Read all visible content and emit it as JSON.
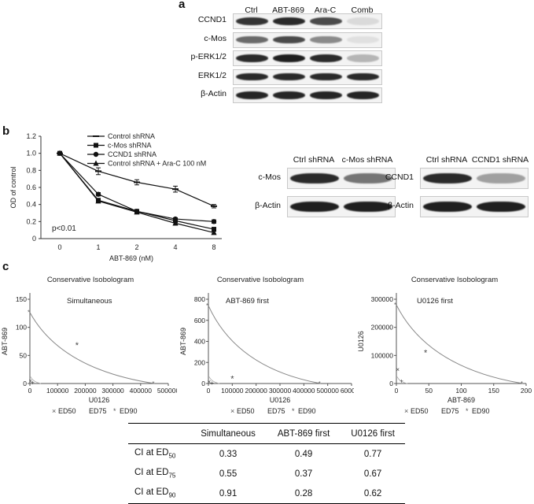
{
  "panel_a": {
    "letter": "a",
    "lanes": [
      "Ctrl",
      "ABT-869",
      "Ara-C",
      "Comb"
    ],
    "rows": [
      {
        "label": "CCND1",
        "intensity": [
          0.85,
          0.9,
          0.75,
          0.08
        ]
      },
      {
        "label": "c-Mos",
        "intensity": [
          0.6,
          0.75,
          0.45,
          0.05
        ]
      },
      {
        "label": "p-ERK1/2",
        "intensity": [
          0.9,
          0.95,
          0.9,
          0.25
        ]
      },
      {
        "label": "ERK1/2",
        "intensity": [
          0.9,
          0.9,
          0.9,
          0.9
        ]
      },
      {
        "label": "β-Actin",
        "intensity": [
          0.92,
          0.92,
          0.92,
          0.92
        ]
      }
    ]
  },
  "panel_b": {
    "letter": "b",
    "blots": [
      {
        "lanes": [
          "Ctrl shRNA",
          "c-Mos shRNA"
        ],
        "rows": [
          {
            "label": "c-Mos",
            "intensity": [
              0.9,
              0.55
            ]
          },
          {
            "label": "β-Actin",
            "intensity": [
              0.95,
              0.95
            ]
          }
        ]
      },
      {
        "lanes": [
          "Ctrl shRNA",
          "CCND1 shRNA"
        ],
        "rows": [
          {
            "label": "CCND1",
            "intensity": [
              0.9,
              0.35
            ]
          },
          {
            "label": "β-Actin",
            "intensity": [
              0.95,
              0.95
            ]
          }
        ]
      }
    ]
  },
  "panel_c": {
    "letter": "c"
  },
  "chart_data": [
    {
      "type": "line",
      "xlabel": "ABT-869 (nM)",
      "ylabel": "OD of control",
      "categories": [
        "0",
        "1",
        "2",
        "4",
        "8"
      ],
      "ylim": [
        0,
        1.2
      ],
      "yticks": [
        "0",
        "0.2",
        "0.4",
        "0.6",
        "0.8",
        "1.0",
        "1.2"
      ],
      "annotation": "p<0.01",
      "legend_position": "top",
      "series": [
        {
          "name": "Control shRNA",
          "marker": "dash",
          "values": [
            1.0,
            0.79,
            0.66,
            0.58,
            0.38
          ],
          "errors": [
            0,
            0.04,
            0.03,
            0.035,
            0.02
          ]
        },
        {
          "name": "c-Mos shRNA",
          "marker": "square",
          "values": [
            1.0,
            0.45,
            0.32,
            0.21,
            0.11
          ],
          "errors": [
            0,
            0.015,
            0.015,
            0.02,
            0.02
          ]
        },
        {
          "name": "CCND1 shRNA",
          "marker": "circle",
          "values": [
            1.0,
            0.52,
            0.32,
            0.23,
            0.2
          ],
          "errors": [
            0,
            0.02,
            0.015,
            0.015,
            0.02
          ]
        },
        {
          "name": "Control shRNA + Ara-C 100 nM",
          "marker": "triangle",
          "values": [
            1.0,
            0.44,
            0.31,
            0.18,
            0.07
          ],
          "errors": [
            0,
            0.015,
            0.015,
            0.015,
            0.015
          ]
        }
      ]
    },
    {
      "type": "scatter",
      "title": "Conservative Isobologram",
      "annotation": "Simultaneous",
      "xlabel": "U0126",
      "ylabel": "ABT-869",
      "xlim": [
        0,
        500000
      ],
      "ylim": [
        0,
        160
      ],
      "xticks": [
        "0",
        "100000",
        "200000",
        "300000",
        "400000",
        "500000"
      ],
      "yticks": [
        "0",
        "50",
        "100",
        "150"
      ],
      "legend": [
        "ED50",
        "ED75",
        "ED90"
      ],
      "isobole": {
        "x_intercept": 450000,
        "y_intercept": 135
      },
      "points": [
        {
          "series": "ED90",
          "x": 170000,
          "y": 72
        },
        {
          "series": "ED50",
          "x": 2000,
          "y": 5
        },
        {
          "series": "ED75",
          "x": 10000,
          "y": 2
        }
      ]
    },
    {
      "type": "scatter",
      "title": "Conservative Isobologram",
      "annotation": "ABT-869 first",
      "xlabel": "U0126",
      "ylabel": "ABT-869",
      "xlim": [
        0,
        600000
      ],
      "ylim": [
        0,
        800
      ],
      "xticks": [
        "0",
        "100000",
        "200000",
        "300000",
        "400000",
        "500000",
        "600000"
      ],
      "yticks": [
        "0",
        "200",
        "400",
        "600",
        "800"
      ],
      "legend": [
        "ED50",
        "ED75",
        "ED90"
      ],
      "isobole": {
        "x_intercept": 470000,
        "y_intercept": 740
      },
      "points": [
        {
          "series": "ED90",
          "x": 100000,
          "y": 42
        },
        {
          "series": "ED50",
          "x": 3000,
          "y": 20
        },
        {
          "series": "ED75",
          "x": 15000,
          "y": 8
        }
      ]
    },
    {
      "type": "scatter",
      "title": "Conservative Isobologram",
      "annotation": "U0126 first",
      "xlabel": "ABT-869",
      "ylabel": "U0126",
      "xlim": [
        0,
        200
      ],
      "ylim": [
        0,
        300000
      ],
      "xticks": [
        "0",
        "50",
        "100",
        "150",
        "200"
      ],
      "yticks": [
        "0",
        "100000",
        "200000",
        "300000"
      ],
      "legend": [
        "ED50",
        "ED75",
        "ED90"
      ],
      "isobole": {
        "x_intercept": 195,
        "y_intercept": 280000
      },
      "points": [
        {
          "series": "ED90",
          "x": 45,
          "y": 108000
        },
        {
          "series": "ED50",
          "x": 2,
          "y": 50000
        },
        {
          "series": "ED75",
          "x": 8,
          "y": 10000
        }
      ]
    },
    {
      "type": "table",
      "columns": [
        "",
        "Simultaneous",
        "ABT-869 first",
        "U0126 first"
      ],
      "rows": [
        {
          "label": "CI at ED",
          "sub": "50",
          "values": [
            "0.33",
            "0.49",
            "0.77"
          ]
        },
        {
          "label": "CI at ED",
          "sub": "75",
          "values": [
            "0.55",
            "0.37",
            "0.67"
          ]
        },
        {
          "label": "CI at ED",
          "sub": "90",
          "values": [
            "0.91",
            "0.28",
            "0.62"
          ]
        }
      ]
    }
  ]
}
